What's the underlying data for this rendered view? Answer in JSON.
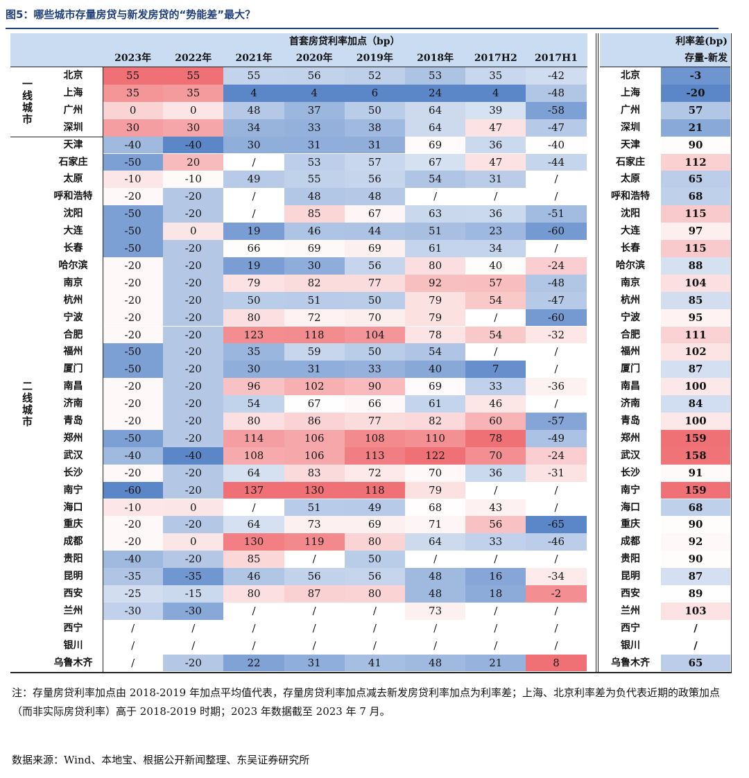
{
  "title": "图5：哪些城市存量房贷与新发房贷的“势能差”最大？",
  "header": {
    "group_label": "首套房贷利率加点（bp）",
    "years": [
      "2023年",
      "2022年",
      "2021年",
      "2020年",
      "2019年",
      "2018年",
      "2017H2",
      "2017H1"
    ],
    "diff_label_1": "利率差(bp)",
    "diff_label_2": "存量-新发"
  },
  "tiers": [
    {
      "label": "一线城市",
      "start": 0,
      "count": 4
    },
    {
      "label": "二线城市",
      "start": 4,
      "count": 31
    }
  ],
  "rows": [
    {
      "city": "北京",
      "values": [
        "55",
        "55",
        "55",
        "56",
        "52",
        "53",
        "35",
        "-42"
      ],
      "city2": "北京",
      "diff": "-3"
    },
    {
      "city": "上海",
      "values": [
        "35",
        "35",
        "4",
        "4",
        "6",
        "24",
        "4",
        "-48"
      ],
      "city2": "上海",
      "diff": "-20"
    },
    {
      "city": "广州",
      "values": [
        "0",
        "0",
        "48",
        "37",
        "50",
        "64",
        "39",
        "-58"
      ],
      "city2": "广州",
      "diff": "57"
    },
    {
      "city": "深圳",
      "values": [
        "30",
        "30",
        "34",
        "33",
        "38",
        "64",
        "47",
        "-47"
      ],
      "city2": "深圳",
      "diff": "21"
    },
    {
      "city": "天津",
      "values": [
        "-40",
        "-40",
        "30",
        "31",
        "31",
        "69",
        "36",
        "-40"
      ],
      "city2": "天津",
      "diff": "90"
    },
    {
      "city": "石家庄",
      "values": [
        "-50",
        "20",
        "/",
        "53",
        "57",
        "67",
        "47",
        "-44"
      ],
      "city2": "石家庄",
      "diff": "112"
    },
    {
      "city": "太原",
      "values": [
        "-10",
        "-10",
        "49",
        "55",
        "56",
        "54",
        "31",
        "/"
      ],
      "city2": "太原",
      "diff": "65"
    },
    {
      "city": "呼和浩特",
      "values": [
        "-20",
        "-20",
        "/",
        "48",
        "48",
        "/",
        "/",
        "/"
      ],
      "city2": "呼和浩特",
      "diff": "68"
    },
    {
      "city": "沈阳",
      "values": [
        "-50",
        "-20",
        "/",
        "85",
        "67",
        "63",
        "36",
        "-51"
      ],
      "city2": "沈阳",
      "diff": "115"
    },
    {
      "city": "大连",
      "values": [
        "-50",
        "0",
        "19",
        "46",
        "44",
        "51",
        "23",
        "-60"
      ],
      "city2": "大连",
      "diff": "97"
    },
    {
      "city": "长春",
      "values": [
        "-50",
        "-20",
        "66",
        "69",
        "69",
        "61",
        "34",
        "/"
      ],
      "city2": "长春",
      "diff": "115"
    },
    {
      "city": "哈尔滨",
      "values": [
        "-20",
        "-20",
        "19",
        "30",
        "56",
        "80",
        "40",
        "-24"
      ],
      "city2": "哈尔滨",
      "diff": "88"
    },
    {
      "city": "南京",
      "values": [
        "-20",
        "-20",
        "79",
        "82",
        "77",
        "92",
        "57",
        "-48"
      ],
      "city2": "南京",
      "diff": "104"
    },
    {
      "city": "杭州",
      "values": [
        "-20",
        "-20",
        "50",
        "51",
        "50",
        "79",
        "54",
        "-47"
      ],
      "city2": "杭州",
      "diff": "85"
    },
    {
      "city": "宁波",
      "values": [
        "-20",
        "-20",
        "80",
        "72",
        "70",
        "79",
        "/",
        "-60"
      ],
      "city2": "宁波",
      "diff": "95"
    },
    {
      "city": "合肥",
      "values": [
        "-20",
        "-20",
        "123",
        "118",
        "104",
        "78",
        "54",
        "-32"
      ],
      "city2": "合肥",
      "diff": "111"
    },
    {
      "city": "福州",
      "values": [
        "-50",
        "-20",
        "35",
        "59",
        "50",
        "54",
        "/",
        "/"
      ],
      "city2": "福州",
      "diff": "102"
    },
    {
      "city": "厦门",
      "values": [
        "-50",
        "-20",
        "30",
        "31",
        "33",
        "40",
        "7",
        "/"
      ],
      "city2": "厦门",
      "diff": "87"
    },
    {
      "city": "南昌",
      "values": [
        "-20",
        "-20",
        "96",
        "102",
        "90",
        "69",
        "33",
        "-36"
      ],
      "city2": "南昌",
      "diff": "100"
    },
    {
      "city": "济南",
      "values": [
        "-20",
        "-20",
        "54",
        "67",
        "66",
        "61",
        "46",
        "/"
      ],
      "city2": "济南",
      "diff": "84"
    },
    {
      "city": "青岛",
      "values": [
        "-20",
        "-20",
        "80",
        "86",
        "77",
        "82",
        "60",
        "-57"
      ],
      "city2": "青岛",
      "diff": "100"
    },
    {
      "city": "郑州",
      "values": [
        "-50",
        "-20",
        "114",
        "106",
        "108",
        "110",
        "78",
        "-49"
      ],
      "city2": "郑州",
      "diff": "159"
    },
    {
      "city": "武汉",
      "values": [
        "-40",
        "-40",
        "108",
        "106",
        "113",
        "122",
        "70",
        "-24"
      ],
      "city2": "武汉",
      "diff": "158"
    },
    {
      "city": "长沙",
      "values": [
        "-20",
        "-20",
        "64",
        "83",
        "72",
        "70",
        "36",
        "-31"
      ],
      "city2": "长沙",
      "diff": "91"
    },
    {
      "city": "南宁",
      "values": [
        "-60",
        "-20",
        "137",
        "130",
        "118",
        "79",
        "/",
        "/"
      ],
      "city2": "南宁",
      "diff": "159"
    },
    {
      "city": "海口",
      "values": [
        "-10",
        "0",
        "/",
        "51",
        "49",
        "68",
        "43",
        "/"
      ],
      "city2": "海口",
      "diff": "68"
    },
    {
      "city": "重庆",
      "values": [
        "-20",
        "-20",
        "64",
        "73",
        "69",
        "71",
        "56",
        "-65"
      ],
      "city2": "重庆",
      "diff": "90"
    },
    {
      "city": "成都",
      "values": [
        "-20",
        "0",
        "130",
        "119",
        "80",
        "64",
        "33",
        "-46"
      ],
      "city2": "成都",
      "diff": "92"
    },
    {
      "city": "贵阳",
      "values": [
        "-40",
        "-20",
        "85",
        "/",
        "50",
        "/",
        "/",
        "/"
      ],
      "city2": "贵阳",
      "diff": "90"
    },
    {
      "city": "昆明",
      "values": [
        "-35",
        "-35",
        "46",
        "56",
        "56",
        "48",
        "16",
        "-34"
      ],
      "city2": "昆明",
      "diff": "87"
    },
    {
      "city": "西安",
      "values": [
        "-25",
        "-15",
        "80",
        "87",
        "80",
        "48",
        "18",
        "-2"
      ],
      "city2": "西安",
      "diff": "89"
    },
    {
      "city": "兰州",
      "values": [
        "-30",
        "-30",
        "/",
        "/",
        "/",
        "73",
        "/",
        "/"
      ],
      "city2": "兰州",
      "diff": "103"
    },
    {
      "city": "西宁",
      "values": [
        "/",
        "/",
        "/",
        "/",
        "/",
        "/",
        "/",
        "/"
      ],
      "city2": "西宁",
      "diff": "/"
    },
    {
      "city": "银川",
      "values": [
        "/",
        "/",
        "/",
        "/",
        "/",
        "/",
        "/",
        "/"
      ],
      "city2": "银川",
      "diff": "/"
    },
    {
      "city": "乌鲁木齐",
      "values": [
        "/",
        "-20",
        "22",
        "31",
        "41",
        "48",
        "21",
        "8"
      ],
      "city2": "乌鲁木齐",
      "diff": "65"
    }
  ],
  "colors": {
    "header_bg": "#c9dcf2",
    "blue_strong": "#5b87c9",
    "red_strong": "#ef6a6e",
    "neutral": "#ffffff",
    "title_color": "#1f3f7a"
  },
  "note": "注：存量房贷利率加点由 2018-2019 年加点平均值代表，存量房贷利率加点减去新发房贷利率加点为利率差；上海、北京利率差为负代表近期的政策加点（而非实际房贷利率）高于 2018-2019 时期；2023 年数据截至 2023 年 7 月。",
  "source": "数据来源：Wind、本地宝、根据公开新闻整理、东吴证券研究所"
}
